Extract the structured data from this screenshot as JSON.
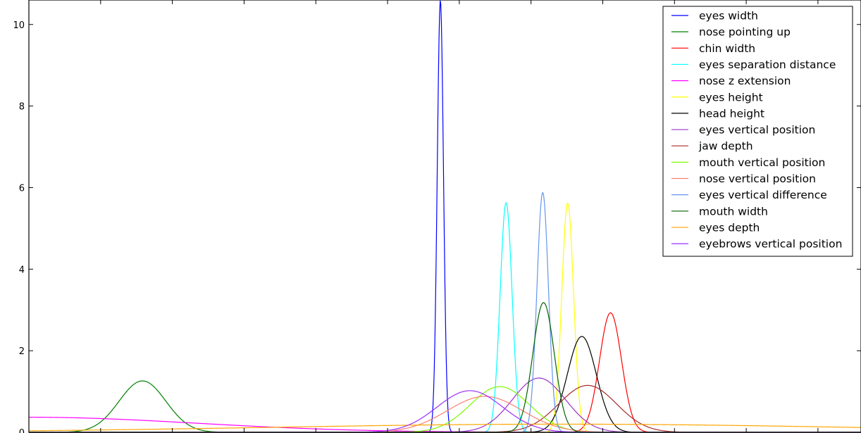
{
  "chart_data": {
    "type": "line",
    "title": "",
    "xlabel": "",
    "ylabel": "",
    "xlim": [
      0,
      1
    ],
    "ylim": [
      0,
      10.6
    ],
    "y_ticks": [
      0,
      2,
      4,
      6,
      8,
      10
    ],
    "y_tick_labels": [
      "0",
      "2",
      "4",
      "6",
      "8",
      "10"
    ],
    "grid": false,
    "legend_position": "top-right",
    "series": [
      {
        "name": "eyes width",
        "color": "#0000ff",
        "mean": 0.4945,
        "sd": 0.00375,
        "peak": 10.6
      },
      {
        "name": "nose pointing up",
        "color": "#008000",
        "mean": 0.1365,
        "sd": 0.0281,
        "peak": 1.26
      },
      {
        "name": "chin width",
        "color": "#ff0000",
        "mean": 0.699,
        "sd": 0.0132,
        "peak": 2.93
      },
      {
        "name": "eyes separation distance",
        "color": "#00ffff",
        "mean": 0.5735,
        "sd": 0.0072,
        "peak": 5.63
      },
      {
        "name": "nose z extension",
        "color": "#ff00ff",
        "mean": 0.0,
        "sd": 0.2,
        "peak": 0.37
      },
      {
        "name": "eyes height",
        "color": "#ffff00",
        "mean": 0.6475,
        "sd": 0.0071,
        "peak": 5.62
      },
      {
        "name": "head height",
        "color": "#000000",
        "mean": 0.6645,
        "sd": 0.0174,
        "peak": 2.35
      },
      {
        "name": "eyes vertical position",
        "color": "#9932cc",
        "mean": 0.613,
        "sd": 0.0318,
        "peak": 1.33
      },
      {
        "name": "jaw depth",
        "color": "#a52a2a",
        "mean": 0.6715,
        "sd": 0.0347,
        "peak": 1.15
      },
      {
        "name": "mouth vertical position",
        "color": "#7cfc00",
        "mean": 0.566,
        "sd": 0.0354,
        "peak": 1.12
      },
      {
        "name": "nose vertical position",
        "color": "#fa8072",
        "mean": 0.548,
        "sd": 0.045,
        "peak": 0.88
      },
      {
        "name": "eyes vertical difference",
        "color": "#6495ed",
        "mean": 0.6175,
        "sd": 0.0069,
        "peak": 5.88
      },
      {
        "name": "mouth width",
        "color": "#006400",
        "mean": 0.6185,
        "sd": 0.0129,
        "peak": 3.18
      },
      {
        "name": "eyes depth",
        "color": "#ffa500",
        "mean": 0.64,
        "sd": 0.35,
        "peak": 0.2
      },
      {
        "name": "eyebrows vertical position",
        "color": "#9b30ff",
        "mean": 0.53,
        "sd": 0.0395,
        "peak": 1.02
      }
    ]
  }
}
